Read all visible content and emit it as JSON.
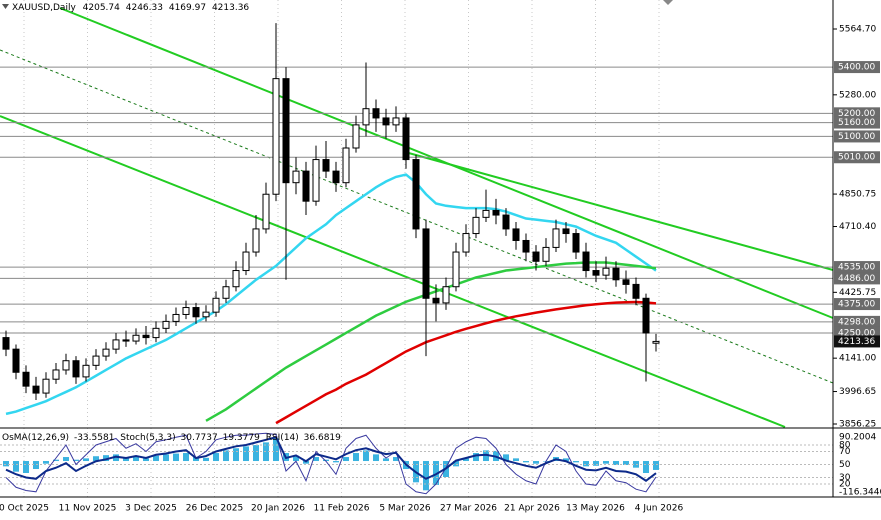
{
  "chart_data": {
    "type": "candlestick",
    "symbol": "XAUUSD,Daily",
    "candles": [
      [
        4230,
        4260,
        4150,
        4180
      ],
      [
        4180,
        4200,
        4050,
        4080
      ],
      [
        4080,
        4110,
        3990,
        4020
      ],
      [
        4020,
        4060,
        3960,
        3990
      ],
      [
        3990,
        4080,
        3970,
        4050
      ],
      [
        4050,
        4120,
        4030,
        4090
      ],
      [
        4090,
        4160,
        4070,
        4130
      ],
      [
        4130,
        4150,
        4030,
        4060
      ],
      [
        4060,
        4140,
        4040,
        4110
      ],
      [
        4110,
        4180,
        4090,
        4150
      ],
      [
        4150,
        4210,
        4130,
        4180
      ],
      [
        4180,
        4250,
        4160,
        4220
      ],
      [
        4220,
        4260,
        4190,
        4215
      ],
      [
        4215,
        4270,
        4200,
        4240
      ],
      [
        4240,
        4280,
        4200,
        4230
      ],
      [
        4230,
        4300,
        4210,
        4270
      ],
      [
        4270,
        4330,
        4250,
        4300
      ],
      [
        4300,
        4360,
        4280,
        4330
      ],
      [
        4330,
        4390,
        4310,
        4360
      ],
      [
        4360,
        4380,
        4290,
        4320
      ],
      [
        4320,
        4370,
        4300,
        4340
      ],
      [
        4340,
        4430,
        4320,
        4400
      ],
      [
        4400,
        4480,
        4380,
        4450
      ],
      [
        4450,
        4560,
        4430,
        4520
      ],
      [
        4520,
        4640,
        4500,
        4600
      ],
      [
        4600,
        4760,
        4580,
        4700
      ],
      [
        4700,
        4900,
        4680,
        4850
      ],
      [
        4850,
        5590,
        4820,
        5350
      ],
      [
        5350,
        5400,
        4480,
        4900
      ],
      [
        4900,
        5010,
        4850,
        4950
      ],
      [
        4950,
        4990,
        4760,
        4820
      ],
      [
        4820,
        5060,
        4800,
        5000
      ],
      [
        5000,
        5080,
        4920,
        4950
      ],
      [
        4950,
        4990,
        4860,
        4900
      ],
      [
        4900,
        5090,
        4880,
        5050
      ],
      [
        5050,
        5190,
        5030,
        5150
      ],
      [
        5150,
        5420,
        5100,
        5220
      ],
      [
        5220,
        5260,
        5120,
        5180
      ],
      [
        5180,
        5220,
        5090,
        5150
      ],
      [
        5150,
        5230,
        5120,
        5180
      ],
      [
        5180,
        5200,
        4960,
        5000
      ],
      [
        5000,
        5020,
        4660,
        4700
      ],
      [
        4700,
        4740,
        4150,
        4400
      ],
      [
        4400,
        4460,
        4300,
        4380
      ],
      [
        4380,
        4490,
        4350,
        4450
      ],
      [
        4450,
        4640,
        4430,
        4600
      ],
      [
        4600,
        4720,
        4580,
        4680
      ],
      [
        4680,
        4790,
        4660,
        4750
      ],
      [
        4750,
        4870,
        4730,
        4780
      ],
      [
        4780,
        4830,
        4720,
        4760
      ],
      [
        4760,
        4790,
        4670,
        4700
      ],
      [
        4700,
        4730,
        4610,
        4650
      ],
      [
        4650,
        4680,
        4560,
        4600
      ],
      [
        4600,
        4630,
        4520,
        4560
      ],
      [
        4560,
        4660,
        4540,
        4620
      ],
      [
        4620,
        4740,
        4600,
        4700
      ],
      [
        4700,
        4730,
        4640,
        4680
      ],
      [
        4680,
        4700,
        4570,
        4600
      ],
      [
        4600,
        4640,
        4490,
        4520
      ],
      [
        4520,
        4560,
        4470,
        4500
      ],
      [
        4500,
        4580,
        4480,
        4530
      ],
      [
        4530,
        4560,
        4450,
        4480
      ],
      [
        4480,
        4520,
        4420,
        4460
      ],
      [
        4460,
        4490,
        4370,
        4400
      ],
      [
        4400,
        4420,
        4040,
        4250
      ],
      [
        4205.74,
        4246.33,
        4169.97,
        4213.36
      ]
    ],
    "series": [
      {
        "color": "#33d6f0",
        "values": [
          3900,
          3910,
          3925,
          3940,
          3955,
          3975,
          3995,
          4015,
          4040,
          4065,
          4090,
          4115,
          4140,
          4160,
          4180,
          4200,
          4220,
          4245,
          4270,
          4295,
          4320,
          4345,
          4375,
          4410,
          4445,
          4480,
          4510,
          4540,
          4580,
          4620,
          4660,
          4690,
          4720,
          4760,
          4790,
          4820,
          4850,
          4880,
          4905,
          4925,
          4935,
          4900,
          4850,
          4810,
          4800,
          4795,
          4790,
          4790,
          4790,
          4785,
          4775,
          4760,
          4745,
          4740,
          4735,
          4730,
          4720,
          4710,
          4690,
          4670,
          4655,
          4640,
          4610,
          4580,
          4550,
          4520
        ]
      },
      {
        "color": "#2ecc40",
        "values": [
          null,
          null,
          null,
          null,
          null,
          null,
          null,
          null,
          null,
          null,
          null,
          null,
          null,
          null,
          null,
          null,
          null,
          null,
          null,
          null,
          3870,
          3895,
          3920,
          3950,
          3980,
          4010,
          4040,
          4070,
          4100,
          4125,
          4150,
          4175,
          4200,
          4225,
          4250,
          4275,
          4300,
          4325,
          4345,
          4365,
          4385,
          4400,
          4415,
          4430,
          4445,
          4460,
          4475,
          4490,
          4500,
          4510,
          4520,
          4525,
          4530,
          4535,
          4540,
          4545,
          4550,
          4552,
          4555,
          4555,
          4555,
          4550,
          4545,
          4540,
          4535,
          4530
        ]
      },
      {
        "color": "#e00000",
        "values": [
          null,
          null,
          null,
          null,
          null,
          null,
          null,
          null,
          null,
          null,
          null,
          null,
          null,
          null,
          null,
          null,
          null,
          null,
          null,
          null,
          null,
          null,
          null,
          null,
          null,
          null,
          null,
          3860,
          3885,
          3910,
          3935,
          3960,
          3985,
          4005,
          4030,
          4050,
          4070,
          4095,
          4120,
          4145,
          4170,
          4190,
          4210,
          4225,
          4240,
          4255,
          4268,
          4280,
          4292,
          4303,
          4313,
          4322,
          4330,
          4338,
          4345,
          4352,
          4358,
          4364,
          4370,
          4374,
          4378,
          4381,
          4383,
          4384,
          4382,
          4378
        ]
      }
    ],
    "ylim": [
      3843.3,
      5690.1
    ],
    "yticks": [
      {
        "value": 5564.7,
        "label": "5564.70"
      },
      {
        "value": 5280,
        "label": "5280.00"
      },
      {
        "value": 4850.75,
        "label": "4850.75"
      },
      {
        "value": 4710.4,
        "label": "4710.40"
      },
      {
        "value": 4425.75,
        "label": "4425.75"
      },
      {
        "value": 4141,
        "label": "4141.00"
      },
      {
        "value": 3996.65,
        "label": "3996.65"
      },
      {
        "value": 3856.25,
        "label": "3856.25"
      }
    ],
    "levels": [
      {
        "value": 5400,
        "label": "5400.00"
      },
      {
        "value": 5200,
        "label": "5200.00"
      },
      {
        "value": 5160,
        "label": "5160.00"
      },
      {
        "value": 5100,
        "label": "5100.00"
      },
      {
        "value": 5010,
        "label": "5010.00"
      },
      {
        "value": 4535,
        "label": "4535.00"
      },
      {
        "value": 4486,
        "label": "4486.00"
      },
      {
        "value": 4375,
        "label": "4375.00"
      },
      {
        "value": 4298,
        "label": "4298.00"
      },
      {
        "value": 4250,
        "label": "4250.00"
      }
    ],
    "x_labels": [
      "0 Oct 2025",
      "11 Nov 2025",
      "3 Dec 2025",
      "26 Dec 2025",
      "20 Jan 2026",
      "11 Feb 2026",
      "5 Mar 2026",
      "27 Mar 2026",
      "21 Apr 2026",
      "13 May 2026",
      "4 Jun 2026"
    ],
    "indicator": {
      "osma_label": "OsMA(12,26,9)",
      "stoch_label": "Stoch(5,3,3)",
      "rsi_label": "RSI(14)",
      "stoch_signal": 19.3779,
      "osma": [
        -20,
        -40,
        -45,
        -30,
        -10,
        5,
        15,
        5,
        10,
        18,
        22,
        25,
        15,
        18,
        10,
        20,
        25,
        28,
        30,
        15,
        12,
        30,
        40,
        48,
        55,
        60,
        70,
        85,
        30,
        20,
        -10,
        15,
        5,
        -5,
        15,
        30,
        40,
        25,
        10,
        15,
        -30,
        -80,
        -110,
        -90,
        -60,
        -20,
        10,
        30,
        40,
        38,
        25,
        10,
        -5,
        -10,
        0,
        15,
        10,
        -5,
        -20,
        -18,
        -10,
        -15,
        -15,
        -25,
        -45,
        -33.5581
      ],
      "osma_lim": [
        -116.3446,
        90.2004
      ],
      "stoch": [
        30,
        15,
        10,
        8,
        40,
        60,
        80,
        50,
        65,
        80,
        85,
        90,
        75,
        82,
        70,
        85,
        88,
        92,
        95,
        60,
        70,
        88,
        92,
        95,
        95,
        97,
        98,
        96,
        40,
        55,
        25,
        70,
        55,
        35,
        75,
        90,
        95,
        75,
        60,
        70,
        20,
        8,
        5,
        20,
        45,
        75,
        85,
        92,
        90,
        75,
        50,
        35,
        25,
        20,
        55,
        80,
        70,
        40,
        20,
        18,
        40,
        25,
        22,
        12,
        8,
        30.7737
      ],
      "rsi": [
        42,
        35,
        30,
        28,
        40,
        45,
        52,
        40,
        48,
        55,
        58,
        62,
        60,
        63,
        60,
        65,
        67,
        70,
        72,
        60,
        63,
        70,
        74,
        78,
        80,
        84,
        88,
        92,
        60,
        64,
        55,
        66,
        62,
        58,
        66,
        72,
        75,
        70,
        66,
        68,
        50,
        38,
        28,
        35,
        44,
        56,
        60,
        64,
        65,
        62,
        56,
        52,
        48,
        45,
        52,
        58,
        55,
        48,
        42,
        41,
        45,
        40,
        39,
        35,
        25,
        36.6819
      ],
      "ylim": [
        0,
        100
      ],
      "yticks": [
        20,
        30,
        50,
        70,
        80
      ]
    }
  }
}
